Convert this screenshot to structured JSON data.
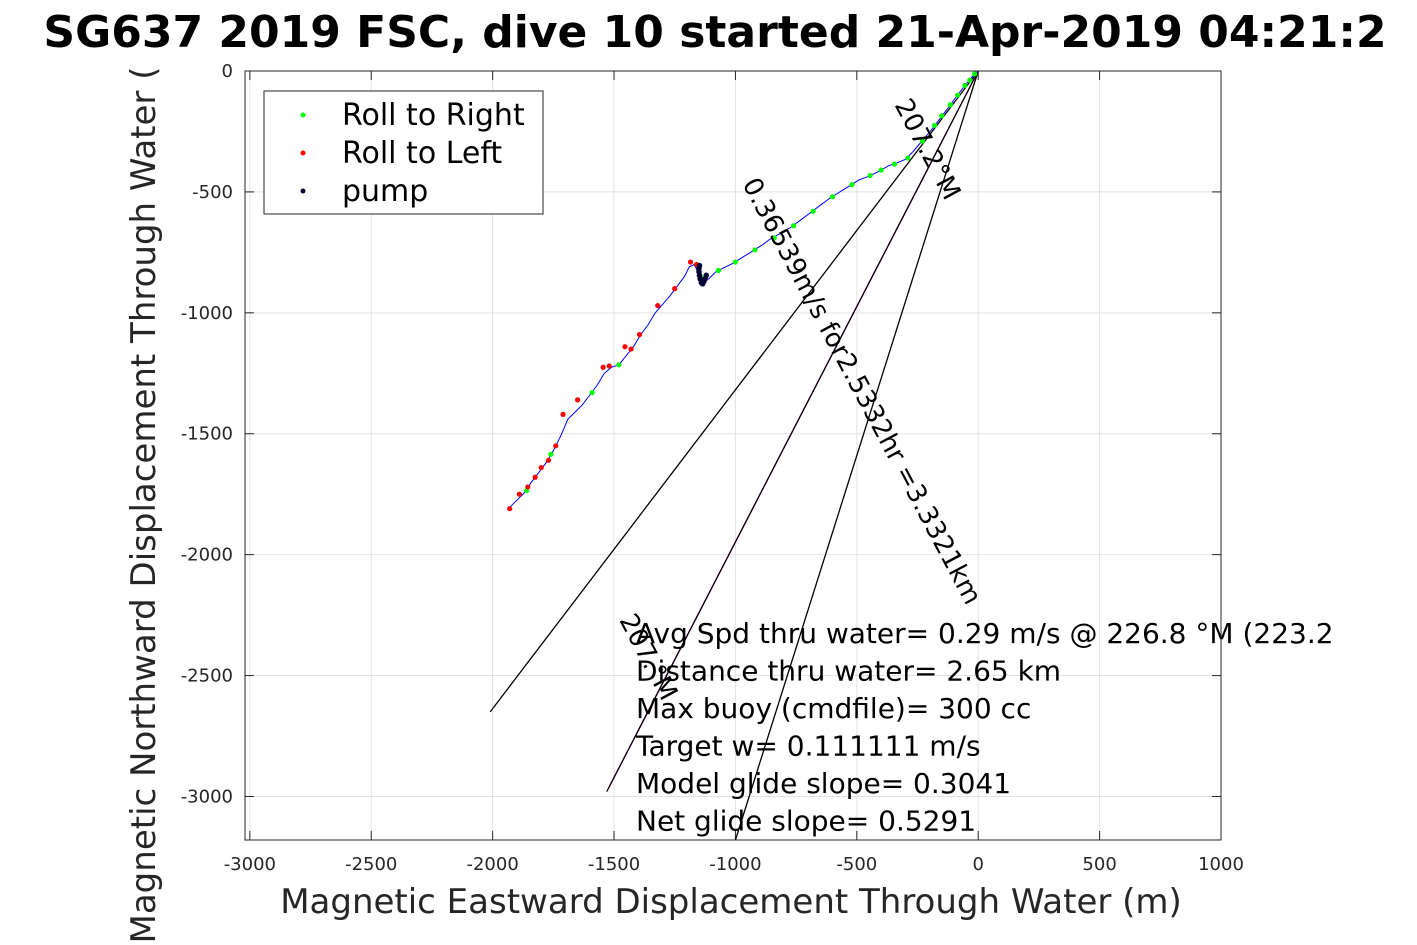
{
  "title": "SG637 2019 FSC, dive 10 started 21-Apr-2019 04:21:2",
  "chart_data": {
    "type": "scatter",
    "title": "SG637 2019 FSC, dive 10 started 21-Apr-2019 04:21:2",
    "xlabel": "Magnetic Eastward Displacement Through Water (m)",
    "ylabel": "Magnetic Northward Displacement Through Water (",
    "xlim": [
      -3020,
      1000
    ],
    "ylim": [
      -3180,
      0
    ],
    "xticks": [
      -3000,
      -2500,
      -2000,
      -1500,
      -1000,
      -500,
      0,
      500,
      1000
    ],
    "yticks": [
      0,
      -500,
      -1000,
      -1500,
      -2000,
      -2500,
      -3000
    ],
    "xtick_labels": [
      "-3000",
      "-2500",
      "-2000",
      "-1500",
      "-1000",
      "-500",
      "0",
      "500",
      "1000"
    ],
    "ytick_labels": [
      "0",
      "-500",
      "-1000",
      "-1500",
      "-2000",
      "-2500",
      "-3000"
    ],
    "grid": true,
    "legend_position": "top-left",
    "legend": [
      {
        "label": "Roll to Right",
        "color": "#00ff00"
      },
      {
        "label": "Roll to Left",
        "color": "#ff0000"
      },
      {
        "label": "pump",
        "color": "#000033"
      }
    ],
    "track_color": "#0000ff",
    "track": [
      [
        0,
        0
      ],
      [
        -20,
        -18
      ],
      [
        -45,
        -48
      ],
      [
        -70,
        -80
      ],
      [
        -100,
        -120
      ],
      [
        -130,
        -160
      ],
      [
        -160,
        -200
      ],
      [
        -190,
        -240
      ],
      [
        -215,
        -270
      ],
      [
        -240,
        -300
      ],
      [
        -270,
        -335
      ],
      [
        -300,
        -365
      ],
      [
        -335,
        -380
      ],
      [
        -370,
        -392
      ],
      [
        -410,
        -415
      ],
      [
        -450,
        -435
      ],
      [
        -490,
        -450
      ],
      [
        -530,
        -475
      ],
      [
        -570,
        -500
      ],
      [
        -610,
        -525
      ],
      [
        -650,
        -555
      ],
      [
        -690,
        -585
      ],
      [
        -730,
        -615
      ],
      [
        -770,
        -645
      ],
      [
        -810,
        -670
      ],
      [
        -850,
        -690
      ],
      [
        -890,
        -720
      ],
      [
        -930,
        -745
      ],
      [
        -970,
        -770
      ],
      [
        -1010,
        -795
      ],
      [
        -1050,
        -815
      ],
      [
        -1080,
        -830
      ],
      [
        -1110,
        -860
      ],
      [
        -1130,
        -860
      ],
      [
        -1150,
        -840
      ],
      [
        -1170,
        -800
      ],
      [
        -1190,
        -810
      ],
      [
        -1210,
        -850
      ],
      [
        -1240,
        -890
      ],
      [
        -1270,
        -930
      ],
      [
        -1300,
        -965
      ],
      [
        -1330,
        -1000
      ],
      [
        -1360,
        -1050
      ],
      [
        -1390,
        -1090
      ],
      [
        -1420,
        -1140
      ],
      [
        -1440,
        -1165
      ],
      [
        -1460,
        -1190
      ],
      [
        -1480,
        -1215
      ],
      [
        -1510,
        -1225
      ],
      [
        -1540,
        -1250
      ],
      [
        -1570,
        -1300
      ],
      [
        -1600,
        -1340
      ],
      [
        -1630,
        -1380
      ],
      [
        -1660,
        -1410
      ],
      [
        -1690,
        -1440
      ],
      [
        -1720,
        -1510
      ],
      [
        -1750,
        -1570
      ],
      [
        -1780,
        -1620
      ],
      [
        -1810,
        -1660
      ],
      [
        -1840,
        -1700
      ],
      [
        -1870,
        -1745
      ],
      [
        -1900,
        -1775
      ],
      [
        -1935,
        -1810
      ]
    ],
    "roll_right": [
      [
        -15,
        -12
      ],
      [
        -35,
        -38
      ],
      [
        -55,
        -60
      ],
      [
        -85,
        -100
      ],
      [
        -115,
        -140
      ],
      [
        -150,
        -185
      ],
      [
        -180,
        -225
      ],
      [
        -230,
        -290
      ],
      [
        -290,
        -360
      ],
      [
        -345,
        -385
      ],
      [
        -400,
        -410
      ],
      [
        -445,
        -432
      ],
      [
        -520,
        -470
      ],
      [
        -600,
        -520
      ],
      [
        -680,
        -580
      ],
      [
        -760,
        -640
      ],
      [
        -840,
        -690
      ],
      [
        -920,
        -740
      ],
      [
        -1000,
        -790
      ],
      [
        -1070,
        -825
      ],
      [
        -1140,
        -855
      ],
      [
        -1480,
        -1215
      ],
      [
        -1590,
        -1330
      ],
      [
        -1760,
        -1585
      ],
      [
        -1860,
        -1735
      ]
    ],
    "roll_left": [
      [
        -1160,
        -800
      ],
      [
        -1185,
        -790
      ],
      [
        -1250,
        -900
      ],
      [
        -1320,
        -970
      ],
      [
        -1395,
        -1090
      ],
      [
        -1430,
        -1150
      ],
      [
        -1455,
        -1140
      ],
      [
        -1520,
        -1220
      ],
      [
        -1545,
        -1225
      ],
      [
        -1650,
        -1360
      ],
      [
        -1710,
        -1420
      ],
      [
        -1740,
        -1550
      ],
      [
        -1770,
        -1610
      ],
      [
        -1800,
        -1640
      ],
      [
        -1825,
        -1680
      ],
      [
        -1855,
        -1720
      ],
      [
        -1890,
        -1750
      ],
      [
        -1930,
        -1810
      ]
    ],
    "pump": [
      [
        -1120,
        -845
      ],
      [
        -1125,
        -860
      ],
      [
        -1130,
        -870
      ],
      [
        -1135,
        -880
      ],
      [
        -1140,
        -875
      ],
      [
        -1145,
        -860
      ],
      [
        -1148,
        -845
      ],
      [
        -1150,
        -830
      ],
      [
        -1150,
        -815
      ],
      [
        -1148,
        -805
      ]
    ],
    "lines": [
      {
        "name": "",
        "color": "#000000",
        "points": [
          [
            0,
            0
          ],
          [
            -2010,
            -2650
          ]
        ]
      },
      {
        "name": "",
        "color": "#000000",
        "points": [
          [
            0,
            0
          ],
          [
            -1000,
            -3180
          ]
        ]
      },
      {
        "name": "",
        "color": "#ff00ff",
        "points": [
          [
            0,
            0
          ],
          [
            -1520,
            -2960
          ]
        ]
      },
      {
        "name": "",
        "color": "#000000",
        "points": [
          [
            0,
            0
          ],
          [
            -1530,
            -2980
          ]
        ]
      }
    ],
    "line_annotations": [
      {
        "text": "207.2°M",
        "x": -240,
        "y": -340,
        "angle": 62
      },
      {
        "text": "0.36539m/s for2.5332hr =3.3321km",
        "x": -510,
        "y": -1340,
        "angle": 62
      },
      {
        "text": "207.°M",
        "x": -1390,
        "y": -2440,
        "angle": 62
      }
    ],
    "annotations": [
      "Avg Spd thru water=  0.29 m/s @ 226.8 °M (223.2",
      "Distance thru water=  2.65 km",
      "Max buoy (cmdfile)= 300 cc",
      "Target w= 0.111111 m/s",
      "Model glide slope= 0.3041",
      "Net glide slope= 0.5291"
    ]
  }
}
